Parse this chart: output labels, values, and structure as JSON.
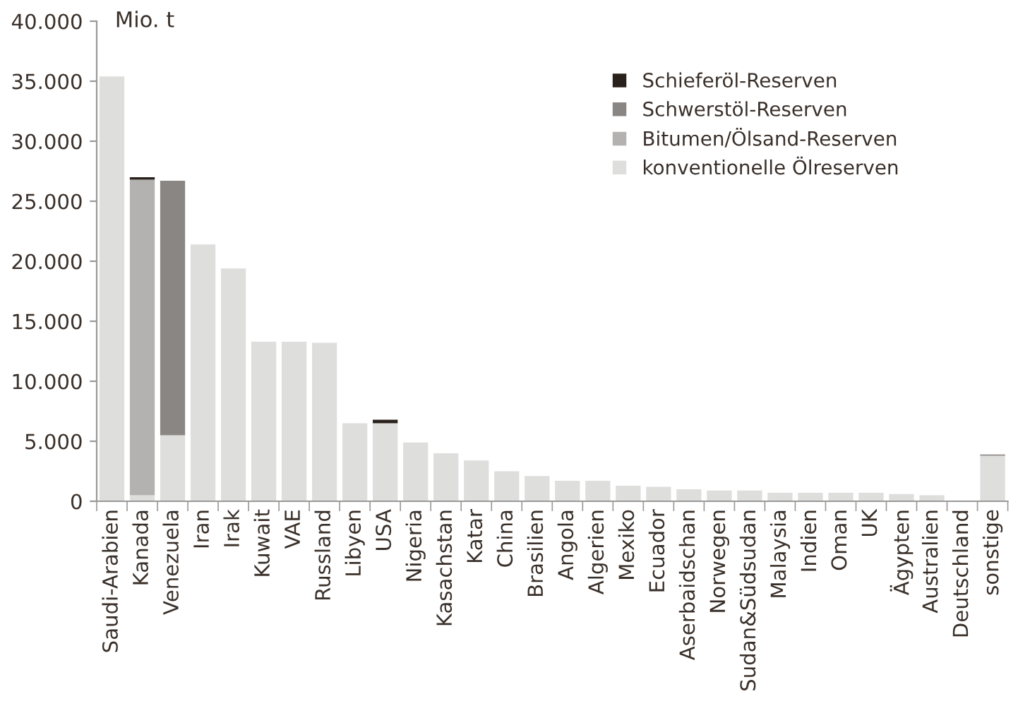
{
  "chart_data": {
    "type": "bar",
    "stacked": true,
    "ylabel": "Mio. t",
    "categories": [
      "Saudi-Arabien",
      "Kanada",
      "Venezuela",
      "Iran",
      "Irak",
      "Kuwait",
      "VAE",
      "Russland",
      "Libyen",
      "USA",
      "Nigeria",
      "Kasachstan",
      "Katar",
      "China",
      "Brasilien",
      "Angola",
      "Algerien",
      "Mexiko",
      "Ecuador",
      "Aserbaidschan",
      "Norwegen",
      "Sudan&Südsudan",
      "Malaysia",
      "Indien",
      "Oman",
      "UK",
      "Ägypten",
      "Australien",
      "Deutschland",
      "sonstige"
    ],
    "series": [
      {
        "name": "konventionelle Ölreserven",
        "color": "#dededd",
        "values": [
          35400,
          500,
          5500,
          21400,
          19400,
          13300,
          13300,
          13200,
          6500,
          6500,
          4900,
          4000,
          3400,
          2500,
          2100,
          1700,
          1700,
          1300,
          1200,
          1000,
          900,
          900,
          700,
          700,
          700,
          700,
          600,
          500,
          0,
          3800
        ]
      },
      {
        "name": "Bitumen/Ölsand-Reserven",
        "color": "#b3b2b0",
        "values": [
          0,
          26300,
          0,
          0,
          0,
          0,
          0,
          0,
          0,
          0,
          0,
          0,
          0,
          0,
          0,
          0,
          0,
          0,
          0,
          0,
          0,
          0,
          0,
          0,
          0,
          0,
          0,
          0,
          0,
          0
        ]
      },
      {
        "name": "Schwerstöl-Reserven",
        "color": "#8a8683",
        "values": [
          0,
          0,
          21200,
          0,
          0,
          0,
          0,
          0,
          0,
          0,
          0,
          0,
          0,
          0,
          0,
          0,
          0,
          0,
          0,
          0,
          0,
          0,
          0,
          0,
          0,
          0,
          0,
          0,
          0,
          100
        ]
      },
      {
        "name": "Schieferöl-Reserven",
        "color": "#2b211c",
        "values": [
          0,
          200,
          0,
          0,
          0,
          0,
          0,
          0,
          0,
          300,
          0,
          0,
          0,
          0,
          0,
          0,
          0,
          0,
          0,
          0,
          0,
          0,
          0,
          0,
          0,
          0,
          0,
          0,
          0,
          0
        ]
      }
    ],
    "ylim": [
      0,
      40000
    ],
    "yticks": [
      {
        "value": 0,
        "label": "0"
      },
      {
        "value": 5000,
        "label": "5.000"
      },
      {
        "value": 10000,
        "label": "10.000"
      },
      {
        "value": 15000,
        "label": "15.000"
      },
      {
        "value": 20000,
        "label": "20.000"
      },
      {
        "value": 25000,
        "label": "25.000"
      },
      {
        "value": 30000,
        "label": "30.000"
      },
      {
        "value": 35000,
        "label": "35.000"
      },
      {
        "value": 40000,
        "label": "40.000"
      }
    ],
    "grid": false,
    "legend": "top right"
  }
}
